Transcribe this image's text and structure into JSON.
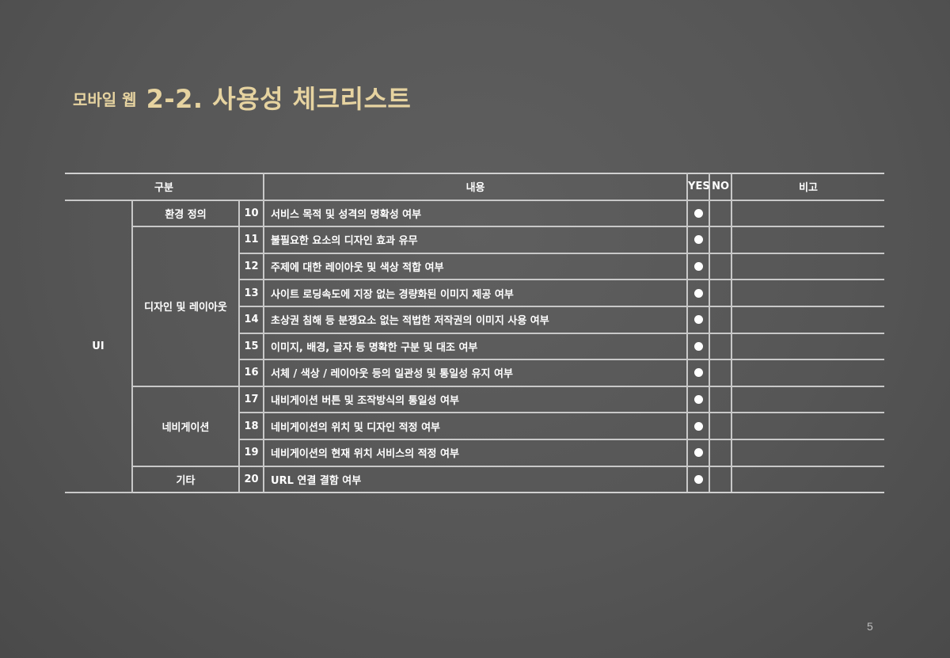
{
  "title": {
    "sub": "모바일 웹",
    "main": "2-2. 사용성 체크리스트"
  },
  "table": {
    "headers": {
      "category": "구분",
      "content": "내용",
      "yes": "YES",
      "no": "NO",
      "note": "비고"
    },
    "category1": "UI",
    "rows": [
      {
        "category2": "환경 정의",
        "no": "10",
        "content": "서비스 목적 및 성격의 명확성 여부",
        "yes": true
      },
      {
        "category2": "디자인 및 레이아웃",
        "no": "11",
        "content": "불필요한 요소의 디자인 효과 유무",
        "yes": true
      },
      {
        "category2": "",
        "no": "12",
        "content": "주제에 대한 레이아웃 및 색상 적합 여부",
        "yes": true
      },
      {
        "category2": "",
        "no": "13",
        "content": "사이트 로딩속도에 지장 없는 경량화된 이미지 제공 여부",
        "yes": true
      },
      {
        "category2": "",
        "no": "14",
        "content": "초상권 침해 등 분쟁요소 없는 적법한 저작권의 이미지 사용 여부",
        "yes": true
      },
      {
        "category2": "",
        "no": "15",
        "content": "이미지, 배경, 글자 등 명확한 구분 및 대조 여부",
        "yes": true
      },
      {
        "category2": "",
        "no": "16",
        "content": "서체 / 색상 / 레이아웃 등의 일관성 및 통일성 유지 여부",
        "yes": true
      },
      {
        "category2": "네비게이션",
        "no": "17",
        "content": "내비게이션 버튼 및 조작방식의 통일성 여부",
        "yes": true
      },
      {
        "category2": "",
        "no": "18",
        "content": "네비게이션의 위치 및 디자인 적정 여부",
        "yes": true
      },
      {
        "category2": "",
        "no": "19",
        "content": "네비게이션의 현재 위치 서비스의 적정 여부",
        "yes": true
      },
      {
        "category2": "기타",
        "no": "20",
        "content": "URL 연결 결함 여부",
        "yes": true
      }
    ]
  },
  "page_number": "5"
}
